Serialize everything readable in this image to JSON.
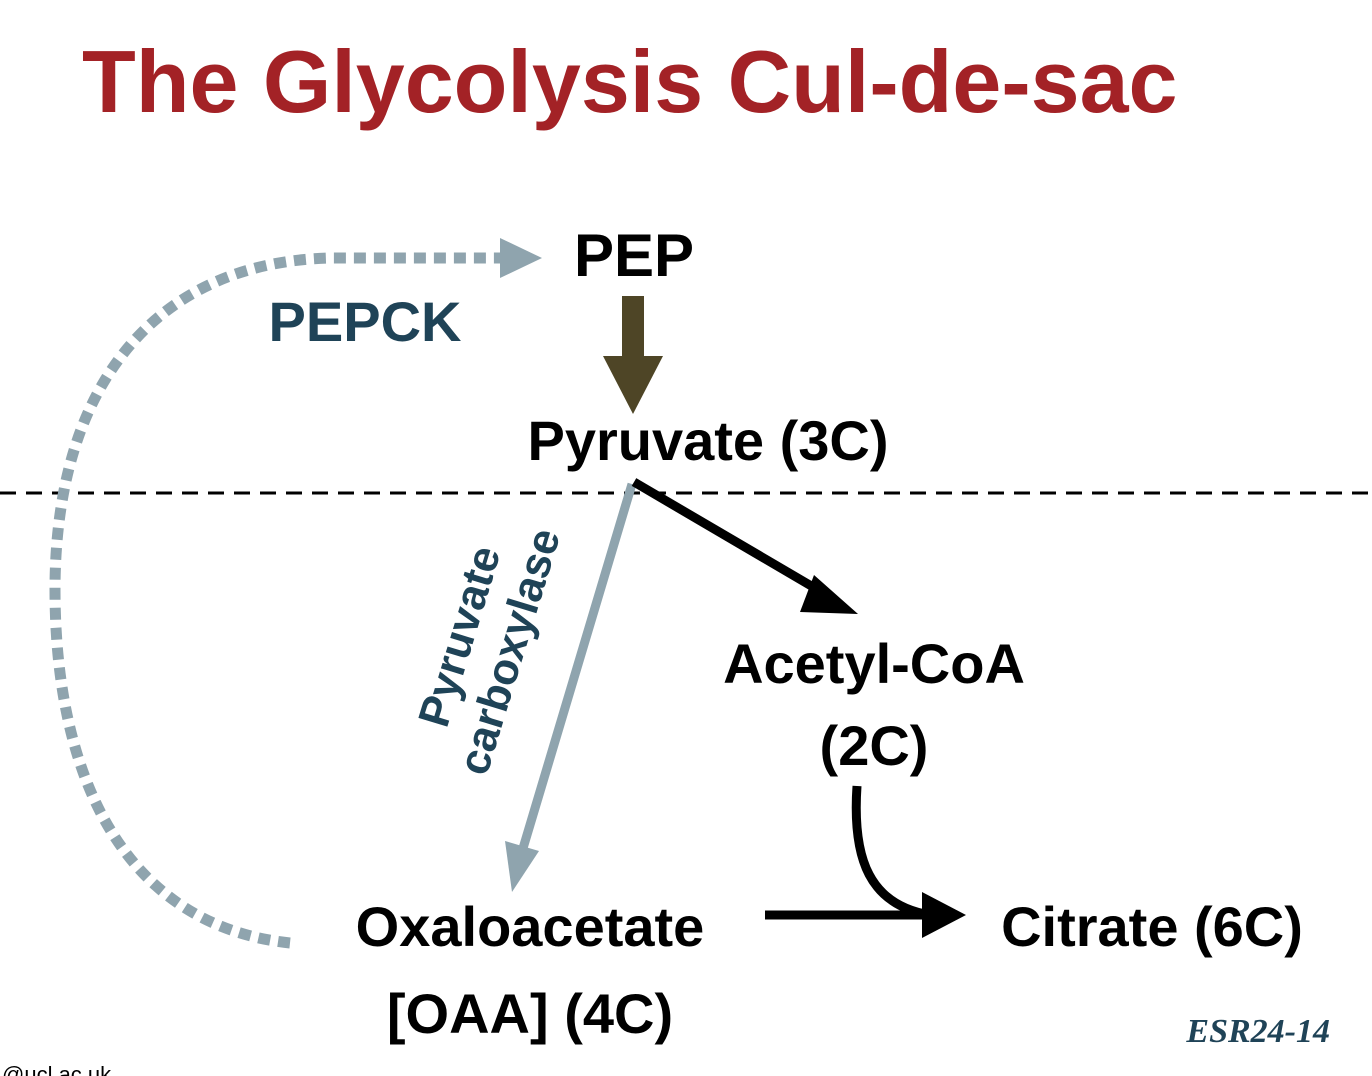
{
  "title": "The Glycolysis Cul-de-sac",
  "nodes": {
    "pep": "PEP",
    "pyruvate": "Pyruvate (3C)",
    "acetyl_coa_line1": "Acetyl-CoA",
    "acetyl_coa_line2": "(2C)",
    "oaa_line1": "Oxaloacetate",
    "oaa_line2": "[OAA] (4C)",
    "citrate": "Citrate (6C)"
  },
  "enzymes": {
    "pepck": "PEPCK",
    "pyruvate_carboxylase_line1": "Pyruvate",
    "pyruvate_carboxylase_line2": "carboxylase"
  },
  "slide_code": "ESR24-14",
  "footer_fragment": "@ucl.ac.uk",
  "colors": {
    "title": "#a32226",
    "enzyme_label": "#1f4357",
    "gray_arrow": "#8fa4ae",
    "brown_arrow": "#4e4526",
    "black": "#000000"
  }
}
